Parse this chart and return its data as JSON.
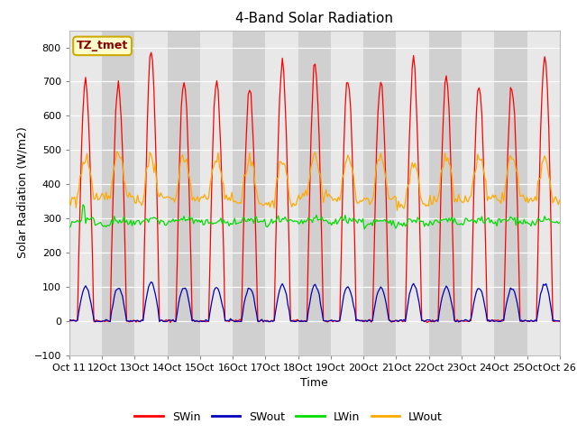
{
  "title": "4-Band Solar Radiation",
  "ylabel": "Solar Radiation (W/m2)",
  "xlabel": "Time",
  "annotation": "TZ_tmet",
  "ylim": [
    -100,
    850
  ],
  "yticks": [
    -100,
    0,
    100,
    200,
    300,
    400,
    500,
    600,
    700,
    800
  ],
  "legend": [
    "SWin",
    "SWout",
    "LWin",
    "LWout"
  ],
  "colors": {
    "SWin": "#ff0000",
    "SWout": "#0000bb",
    "LWin": "#00dd00",
    "LWout": "#ffaa00"
  },
  "fig_bg": "#ffffff",
  "plot_bg": "#ffffff",
  "band_light": "#e8e8e8",
  "band_dark": "#d0d0d0",
  "days": 15,
  "start_day": 11,
  "peaks_SWin": [
    710,
    700,
    790,
    705,
    700,
    685,
    750,
    745,
    710,
    705,
    755,
    715,
    690,
    685,
    780
  ],
  "seed": 42
}
